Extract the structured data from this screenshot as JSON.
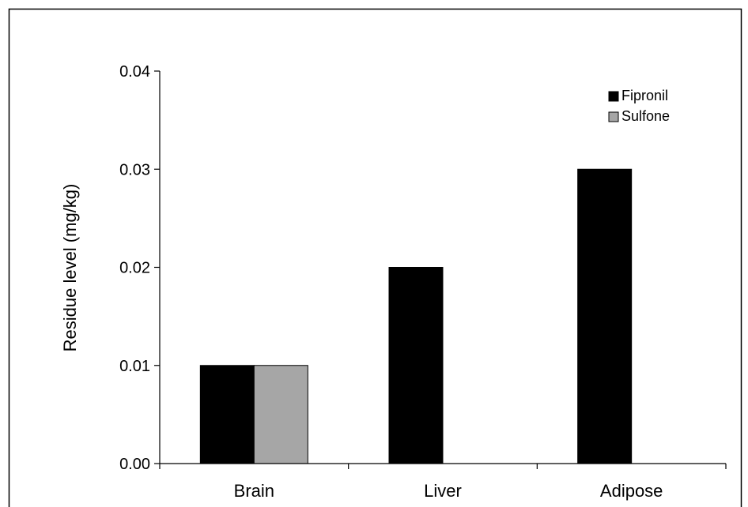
{
  "chart_data": {
    "type": "bar",
    "title": "",
    "xlabel": "",
    "ylabel": "Residue level (mg/kg)",
    "categories": [
      "Brain",
      "Liver",
      "Adipose"
    ],
    "series": [
      {
        "name": "Fipronil",
        "color": "#000000",
        "values": [
          0.01,
          0.02,
          0.03
        ]
      },
      {
        "name": "Sulfone",
        "color": "#a6a6a6",
        "values": [
          0.01,
          null,
          null
        ]
      }
    ],
    "ylim": [
      0,
      0.04
    ],
    "yticks": [
      "0.00",
      "0.01",
      "0.02",
      "0.03",
      "0.04"
    ],
    "grid": false,
    "legend": {
      "position": "top-right"
    }
  }
}
